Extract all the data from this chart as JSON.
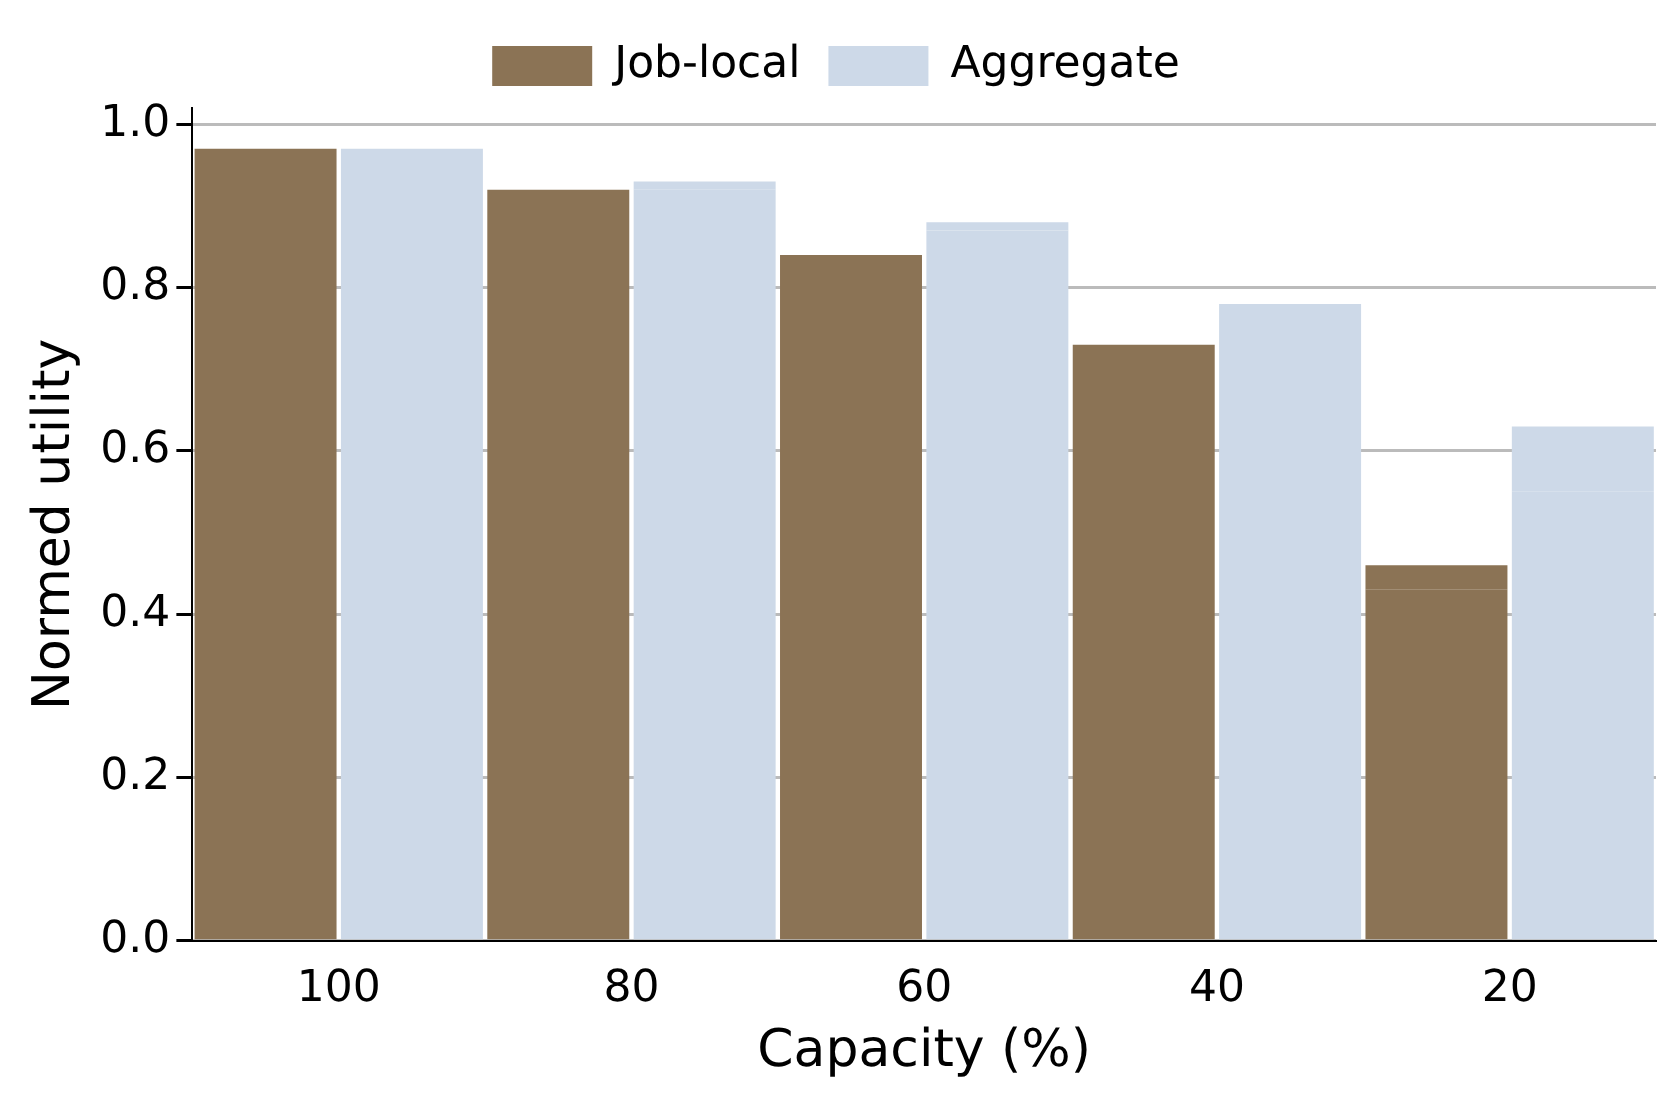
{
  "chart_data": {
    "type": "bar",
    "xlabel": "Capacity (%)",
    "ylabel": "Normed utility",
    "categories": [
      "100",
      null,
      "80",
      null,
      "60",
      null,
      "40",
      null,
      "20",
      null
    ],
    "stacked": true,
    "series": [
      {
        "name": "Job-local",
        "color": "#8b7355",
        "values": [
          0.97,
          null,
          0.92,
          null,
          0.84,
          null,
          0.72,
          null,
          0.43,
          null
        ]
      },
      {
        "color": "#8b7355",
        "values": [
          null,
          null,
          null,
          null,
          null,
          null,
          0.01,
          null,
          0.03,
          null
        ]
      },
      {
        "name": "Aggregate",
        "color": "#cdd9e8",
        "values": [
          null,
          0.97,
          null,
          0.92,
          null,
          0.87,
          null,
          0.77,
          null,
          0.55
        ]
      },
      {
        "color": "#cdd9e8",
        "values": [
          null,
          null,
          null,
          0.01,
          null,
          0.01,
          null,
          0.01,
          null,
          0.08
        ]
      }
    ],
    "ylim": [
      0,
      1.02
    ],
    "yticks": [
      {
        "value": 0,
        "label": "0.0"
      },
      0.2,
      0.4,
      0.6,
      0.8,
      {
        "value": 1,
        "label": "1.0"
      }
    ],
    "grid": "y",
    "legend": "top"
  }
}
